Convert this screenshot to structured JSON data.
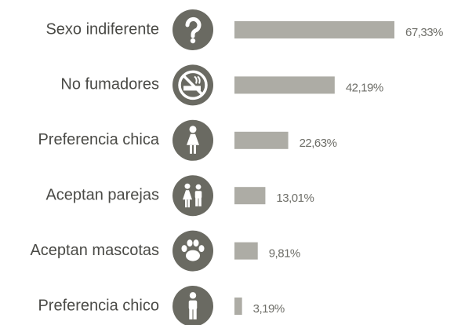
{
  "chart_data": {
    "type": "bar",
    "orientation": "horizontal",
    "categories": [
      "Sexo indiferente",
      "No fumadores",
      "Preferencia chica",
      "Aceptan parejas",
      "Aceptan mascotas",
      "Preferencia chico"
    ],
    "values": [
      67.33,
      42.19,
      22.63,
      13.01,
      9.81,
      3.19
    ],
    "value_labels": [
      "67,33%",
      "42,19%",
      "22,63%",
      "13,01%",
      "9,81%",
      "3,19%"
    ],
    "color": "#adaca5"
  }
}
